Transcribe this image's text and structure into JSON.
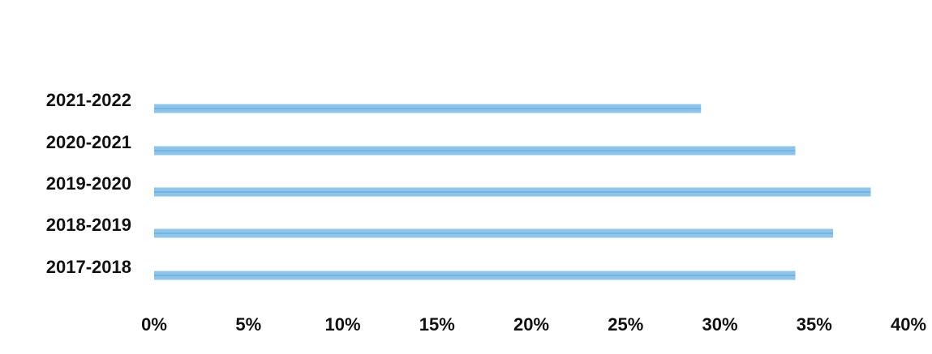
{
  "chart_data": {
    "type": "bar",
    "orientation": "horizontal",
    "categories": [
      "2021-2022",
      "2020-2021",
      "2019-2020",
      "2018-2019",
      "2017-2018"
    ],
    "values": [
      29,
      34,
      38,
      36,
      34
    ],
    "unit": "%",
    "xlim": [
      0,
      40
    ],
    "x_ticks": [
      "0%",
      "5%",
      "10%",
      "15%",
      "20%",
      "25%",
      "30%",
      "35%",
      "40%"
    ],
    "grid": false,
    "legend": "none",
    "bar_color": "#8ec3ea"
  }
}
